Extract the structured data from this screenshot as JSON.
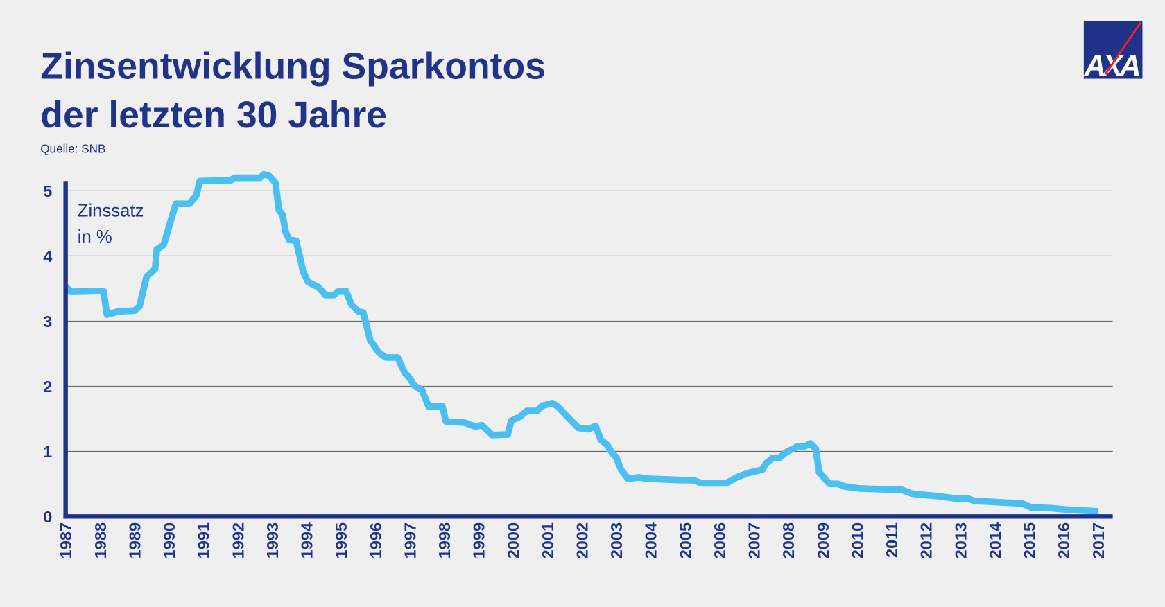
{
  "chart_data": {
    "type": "line",
    "title_lines": [
      "Zinsentwicklung Sparkontos",
      "der letzten 30 Jahre"
    ],
    "source": "Quelle: SNB",
    "ylabel_lines": [
      "Zinssatz",
      "in %"
    ],
    "logo": "AXA",
    "color": "#4bbfef",
    "x": [
      1987.0,
      1987.15,
      1988.1,
      1988.2,
      1988.55,
      1989.0,
      1989.15,
      1989.35,
      1989.6,
      1989.65,
      1989.85,
      1990.2,
      1990.6,
      1990.8,
      1990.9,
      1991.8,
      1991.9,
      1992.65,
      1992.75,
      1992.9,
      1993.1,
      1993.2,
      1993.3,
      1993.4,
      1993.5,
      1993.7,
      1993.8,
      1993.9,
      1994.05,
      1994.35,
      1994.55,
      1994.8,
      1994.9,
      1995.15,
      1995.3,
      1995.5,
      1995.65,
      1995.75,
      1995.85,
      1996.1,
      1996.3,
      1996.65,
      1996.85,
      1997.0,
      1997.15,
      1997.35,
      1997.55,
      1997.95,
      1998.05,
      1998.6,
      1998.9,
      1999.1,
      1999.4,
      1999.85,
      1999.95,
      2000.2,
      2000.4,
      2000.7,
      2000.85,
      2001.15,
      2001.3,
      2001.55,
      2001.9,
      2002.2,
      2002.4,
      2002.55,
      2002.75,
      2002.9,
      2003.0,
      2003.15,
      2003.35,
      2003.65,
      2003.9,
      2004.9,
      2005.2,
      2005.5,
      2006.2,
      2006.5,
      2006.85,
      2007.25,
      2007.35,
      2007.55,
      2007.75,
      2007.95,
      2008.25,
      2008.45,
      2008.65,
      2008.8,
      2008.9,
      2009.2,
      2009.45,
      2009.65,
      2010.1,
      2011.3,
      2011.6,
      2012.4,
      2012.95,
      2013.2,
      2013.4,
      2014.8,
      2015.05,
      2015.6,
      2016.2,
      2017.0
    ],
    "values": [
      3.53,
      3.45,
      3.46,
      3.1,
      3.15,
      3.16,
      3.23,
      3.68,
      3.8,
      4.1,
      4.17,
      4.8,
      4.8,
      4.93,
      5.15,
      5.16,
      5.2,
      5.2,
      5.25,
      5.24,
      5.12,
      4.7,
      4.64,
      4.36,
      4.25,
      4.23,
      4.0,
      3.76,
      3.6,
      3.52,
      3.4,
      3.4,
      3.45,
      3.46,
      3.26,
      3.15,
      3.13,
      2.92,
      2.71,
      2.52,
      2.44,
      2.44,
      2.21,
      2.12,
      2.0,
      1.95,
      1.69,
      1.69,
      1.46,
      1.44,
      1.38,
      1.4,
      1.25,
      1.26,
      1.47,
      1.53,
      1.62,
      1.62,
      1.7,
      1.74,
      1.69,
      1.55,
      1.36,
      1.34,
      1.39,
      1.18,
      1.09,
      0.96,
      0.91,
      0.71,
      0.58,
      0.6,
      0.58,
      0.56,
      0.56,
      0.51,
      0.51,
      0.6,
      0.67,
      0.72,
      0.81,
      0.9,
      0.9,
      0.99,
      1.07,
      1.07,
      1.12,
      1.04,
      0.68,
      0.5,
      0.5,
      0.46,
      0.43,
      0.41,
      0.35,
      0.31,
      0.27,
      0.28,
      0.24,
      0.2,
      0.14,
      0.13,
      0.1,
      0.08
    ],
    "xlim": [
      1987,
      2017
    ],
    "xticks": [
      1987,
      1988,
      1989,
      1990,
      1991,
      1992,
      1993,
      1994,
      1995,
      1996,
      1997,
      1998,
      1999,
      2000,
      2001,
      2002,
      2003,
      2004,
      2005,
      2006,
      2007,
      2008,
      2009,
      2010,
      2011,
      2012,
      2013,
      2014,
      2015,
      2016,
      2017
    ],
    "ylim": [
      0,
      5.15
    ],
    "yticks": [
      0,
      1,
      2,
      3,
      4,
      5
    ],
    "grid": true
  }
}
